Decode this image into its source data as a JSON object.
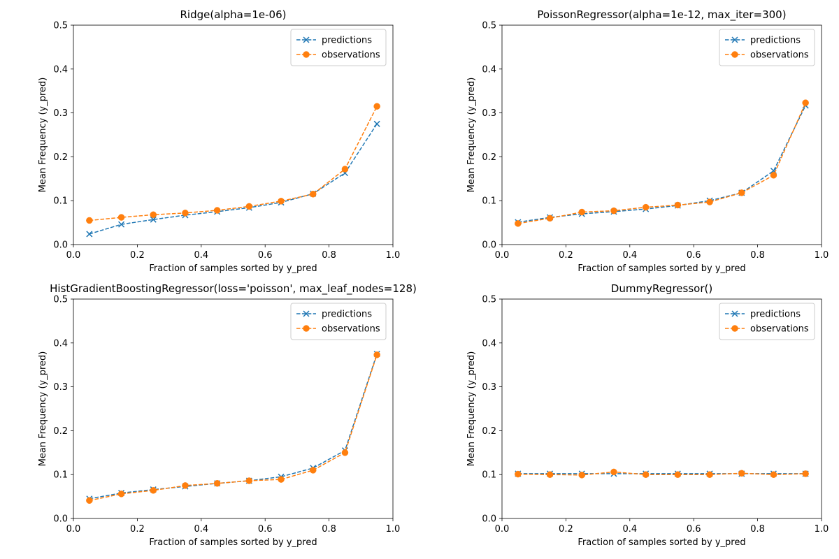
{
  "colors": {
    "predictions": "#1f77b4",
    "observations": "#ff7f0e"
  },
  "chart_data": [
    {
      "type": "line",
      "title": "Ridge(alpha=1e-06)",
      "xlabel": "Fraction of samples sorted by y_pred",
      "ylabel": "Mean Frequency (y_pred)",
      "xlim": [
        0.0,
        1.0
      ],
      "ylim": [
        0.0,
        0.5
      ],
      "xticks": [
        0.0,
        0.2,
        0.4,
        0.6,
        0.8,
        1.0
      ],
      "xtick_labels": [
        "0.0",
        "0.2",
        "0.4",
        "0.6",
        "0.8",
        "1.0"
      ],
      "yticks": [
        0.0,
        0.1,
        0.2,
        0.3,
        0.4,
        0.5
      ],
      "ytick_labels": [
        "0.0",
        "0.1",
        "0.2",
        "0.3",
        "0.4",
        "0.5"
      ],
      "grid": false,
      "legend": "top-right",
      "x": [
        0.05,
        0.15,
        0.25,
        0.35,
        0.45,
        0.55,
        0.65,
        0.75,
        0.85,
        0.95
      ],
      "series": [
        {
          "name": "predictions",
          "marker": "x",
          "values": [
            0.024,
            0.046,
            0.057,
            0.067,
            0.075,
            0.084,
            0.096,
            0.116,
            0.163,
            0.275
          ]
        },
        {
          "name": "observations",
          "marker": "o",
          "values": [
            0.055,
            0.062,
            0.068,
            0.072,
            0.078,
            0.087,
            0.099,
            0.115,
            0.172,
            0.315
          ]
        }
      ]
    },
    {
      "type": "line",
      "title": "PoissonRegressor(alpha=1e-12, max_iter=300)",
      "xlabel": "Fraction of samples sorted by y_pred",
      "ylabel": "Mean Frequency (y_pred)",
      "xlim": [
        0.0,
        1.0
      ],
      "ylim": [
        0.0,
        0.5
      ],
      "xticks": [
        0.0,
        0.2,
        0.4,
        0.6,
        0.8,
        1.0
      ],
      "xtick_labels": [
        "0.0",
        "0.2",
        "0.4",
        "0.6",
        "0.8",
        "1.0"
      ],
      "yticks": [
        0.0,
        0.1,
        0.2,
        0.3,
        0.4,
        0.5
      ],
      "ytick_labels": [
        "0.0",
        "0.1",
        "0.2",
        "0.3",
        "0.4",
        "0.5"
      ],
      "grid": false,
      "legend": "top-right",
      "x": [
        0.05,
        0.15,
        0.25,
        0.35,
        0.45,
        0.55,
        0.65,
        0.75,
        0.85,
        0.95
      ],
      "series": [
        {
          "name": "predictions",
          "marker": "x",
          "values": [
            0.051,
            0.062,
            0.07,
            0.075,
            0.081,
            0.089,
            0.1,
            0.118,
            0.168,
            0.317
          ]
        },
        {
          "name": "observations",
          "marker": "o",
          "values": [
            0.048,
            0.06,
            0.074,
            0.077,
            0.085,
            0.09,
            0.097,
            0.118,
            0.158,
            0.323
          ]
        }
      ]
    },
    {
      "type": "line",
      "title": "HistGradientBoostingRegressor(loss='poisson', max_leaf_nodes=128)",
      "xlabel": "Fraction of samples sorted by y_pred",
      "ylabel": "Mean Frequency (y_pred)",
      "xlim": [
        0.0,
        1.0
      ],
      "ylim": [
        0.0,
        0.5
      ],
      "xticks": [
        0.0,
        0.2,
        0.4,
        0.6,
        0.8,
        1.0
      ],
      "xtick_labels": [
        "0.0",
        "0.2",
        "0.4",
        "0.6",
        "0.8",
        "1.0"
      ],
      "yticks": [
        0.0,
        0.1,
        0.2,
        0.3,
        0.4,
        0.5
      ],
      "ytick_labels": [
        "0.0",
        "0.1",
        "0.2",
        "0.3",
        "0.4",
        "0.5"
      ],
      "grid": false,
      "legend": "top-right",
      "x": [
        0.05,
        0.15,
        0.25,
        0.35,
        0.45,
        0.55,
        0.65,
        0.75,
        0.85,
        0.95
      ],
      "series": [
        {
          "name": "predictions",
          "marker": "x",
          "values": [
            0.045,
            0.058,
            0.066,
            0.073,
            0.08,
            0.086,
            0.095,
            0.115,
            0.155,
            0.375
          ]
        },
        {
          "name": "observations",
          "marker": "o",
          "values": [
            0.041,
            0.056,
            0.064,
            0.075,
            0.08,
            0.086,
            0.089,
            0.11,
            0.15,
            0.373
          ]
        }
      ]
    },
    {
      "type": "line",
      "title": "DummyRegressor()",
      "xlabel": "Fraction of samples sorted by y_pred",
      "ylabel": "Mean Frequency (y_pred)",
      "xlim": [
        0.0,
        1.0
      ],
      "ylim": [
        0.0,
        0.5
      ],
      "xticks": [
        0.0,
        0.2,
        0.4,
        0.6,
        0.8,
        1.0
      ],
      "xtick_labels": [
        "0.0",
        "0.2",
        "0.4",
        "0.6",
        "0.8",
        "1.0"
      ],
      "yticks": [
        0.0,
        0.1,
        0.2,
        0.3,
        0.4,
        0.5
      ],
      "ytick_labels": [
        "0.0",
        "0.1",
        "0.2",
        "0.3",
        "0.4",
        "0.5"
      ],
      "grid": false,
      "legend": "top-right",
      "x": [
        0.05,
        0.15,
        0.25,
        0.35,
        0.45,
        0.55,
        0.65,
        0.75,
        0.85,
        0.95
      ],
      "series": [
        {
          "name": "predictions",
          "marker": "x",
          "values": [
            0.102,
            0.102,
            0.102,
            0.102,
            0.102,
            0.102,
            0.102,
            0.102,
            0.102,
            0.102
          ]
        },
        {
          "name": "observations",
          "marker": "o",
          "values": [
            0.101,
            0.1,
            0.099,
            0.106,
            0.1,
            0.1,
            0.1,
            0.103,
            0.1,
            0.102
          ]
        }
      ]
    }
  ]
}
